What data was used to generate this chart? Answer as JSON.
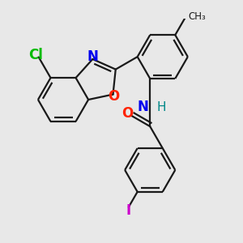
{
  "bg_color": "#e8e8e8",
  "bond_color": "#1a1a1a",
  "atom_colors": {
    "Cl": "#00bb00",
    "N": "#0000ee",
    "O": "#ff2200",
    "H": "#008888",
    "I": "#cc00cc"
  },
  "lw": 1.6,
  "fs": 12
}
